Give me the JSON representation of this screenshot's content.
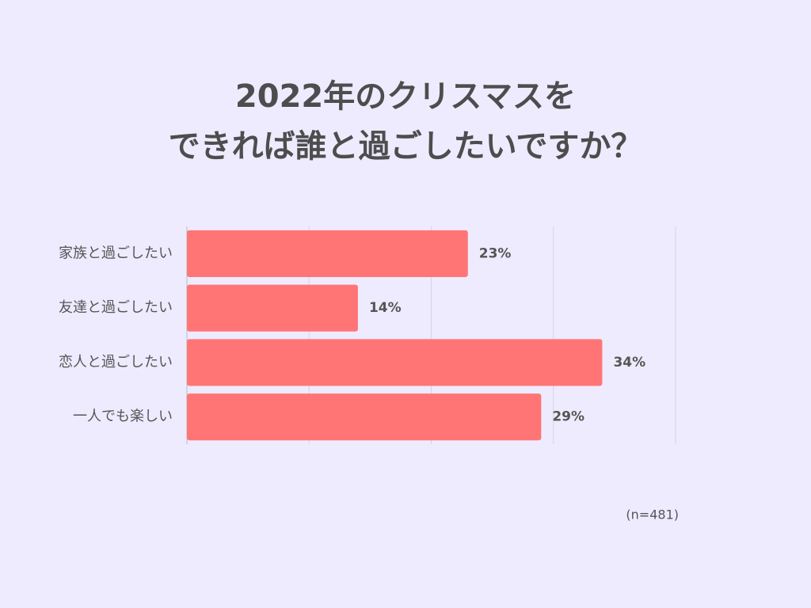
{
  "chart_data": {
    "type": "bar",
    "orientation": "horizontal",
    "title": [
      "2022年のクリスマスを",
      "できれば誰と過ごしたいですか？"
    ],
    "categories": [
      "家族と過ごしたい",
      "友達と過ごしたい",
      "恋人と過ごしたい",
      "一人でも楽しい"
    ],
    "values": [
      23,
      14,
      34,
      29
    ],
    "value_labels": [
      "23%",
      "14%",
      "34%",
      "29%"
    ],
    "color": "#ff7575",
    "xlim": [
      0,
      40
    ],
    "xticks": [
      0,
      10,
      20,
      30,
      40
    ],
    "grid": true,
    "note": "(n=481)"
  }
}
